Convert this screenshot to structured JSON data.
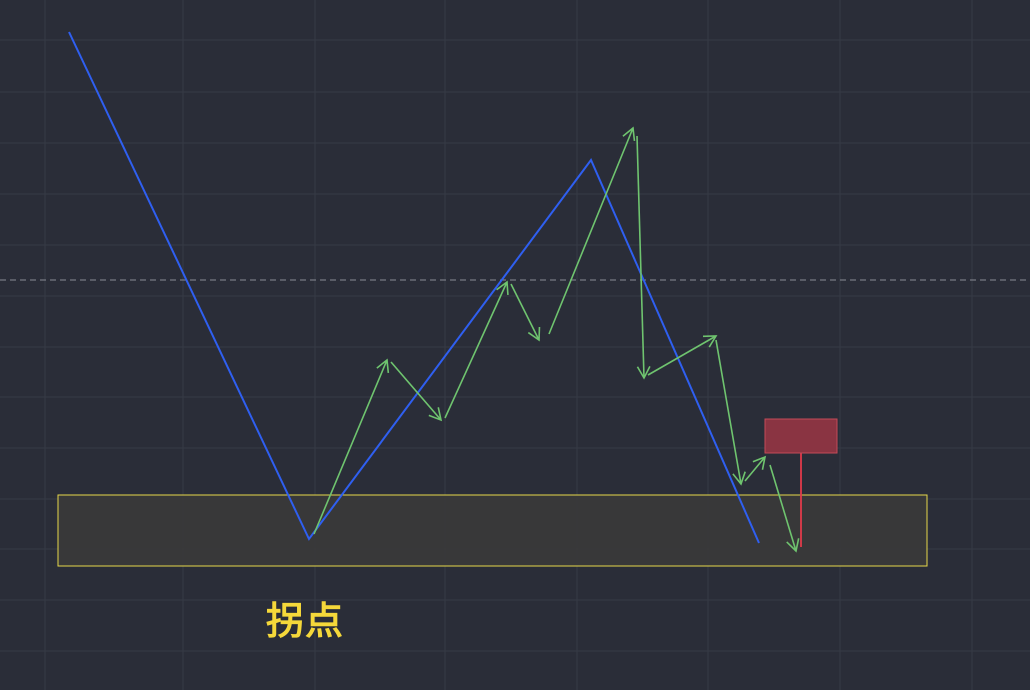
{
  "chart_data": {
    "type": "line",
    "title": "",
    "xlabel": "",
    "ylabel": "",
    "grid": true,
    "colors": {
      "background": "#2a2d38",
      "grid": "#363a46",
      "dashed_level": "#8a8d96",
      "main_path": "#2f5ff0",
      "sub_waves": "#6fc46f",
      "support_zone_fill": "#3a3a3a",
      "support_zone_border": "#e6d84a",
      "marker_fill": "#8a3442",
      "marker_border": "#c44a58",
      "marker_line": "#e03a4a",
      "annotation": "#f5d83a"
    },
    "annotations": [
      {
        "name": "pivot-label",
        "text": "拐点"
      }
    ]
  }
}
